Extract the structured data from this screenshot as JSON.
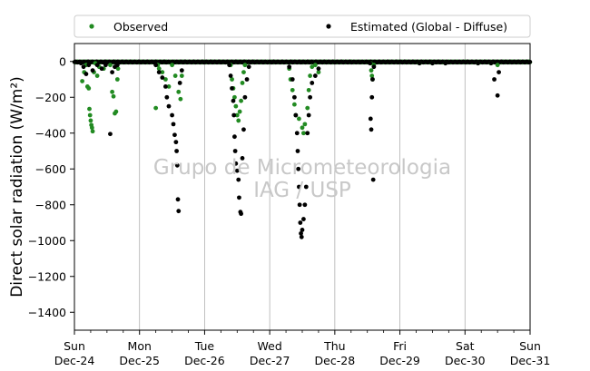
{
  "chart_data": {
    "type": "scatter",
    "ylabel": "Direct solar radiation (W/m²)",
    "ylim": [
      -1500,
      100
    ],
    "yticks": [
      0,
      -200,
      -400,
      -600,
      -800,
      -1000,
      -1200,
      -1400
    ],
    "ytick_labels": [
      "0",
      "−200",
      "−400",
      "−600",
      "−800",
      "−1000",
      "−1200",
      "−1400"
    ],
    "xlim": [
      0,
      7
    ],
    "xtick_days": [
      0,
      1,
      2,
      3,
      4,
      5,
      6,
      7
    ],
    "xtick_labels": [
      {
        "day": "Sun",
        "date": "Dec-24"
      },
      {
        "day": "Mon",
        "date": "Dec-25"
      },
      {
        "day": "Tue",
        "date": "Dec-26"
      },
      {
        "day": "Wed",
        "date": "Dec-27"
      },
      {
        "day": "Thu",
        "date": "Dec-28"
      },
      {
        "day": "Fri",
        "date": "Dec-29"
      },
      {
        "day": "Sat",
        "date": "Dec-30"
      },
      {
        "day": "Sun",
        "date": "Dec-31"
      }
    ],
    "grid": "vertical",
    "legend_placement": "above plot, two columns",
    "watermark": [
      "Grupo de Micrometeorologia",
      "IAG / USP"
    ],
    "series": [
      {
        "name": "Observed",
        "color": "#228b22",
        "points": [
          [
            0.12,
            -110
          ],
          [
            0.15,
            -60
          ],
          [
            0.18,
            -20
          ],
          [
            0.2,
            -140
          ],
          [
            0.22,
            -150
          ],
          [
            0.23,
            -265
          ],
          [
            0.24,
            -300
          ],
          [
            0.25,
            -330
          ],
          [
            0.26,
            -355
          ],
          [
            0.27,
            -370
          ],
          [
            0.28,
            -390
          ],
          [
            0.3,
            -60
          ],
          [
            0.32,
            -10
          ],
          [
            0.35,
            -80
          ],
          [
            0.38,
            -30
          ],
          [
            0.45,
            -40
          ],
          [
            0.55,
            -20
          ],
          [
            0.58,
            -170
          ],
          [
            0.6,
            -195
          ],
          [
            0.62,
            -290
          ],
          [
            0.64,
            -280
          ],
          [
            0.66,
            -100
          ],
          [
            0.67,
            -40
          ],
          [
            1.25,
            -260
          ],
          [
            1.28,
            -20
          ],
          [
            1.3,
            -40
          ],
          [
            1.35,
            -60
          ],
          [
            1.4,
            -100
          ],
          [
            1.45,
            -140
          ],
          [
            1.5,
            -20
          ],
          [
            1.55,
            -80
          ],
          [
            1.6,
            -170
          ],
          [
            1.63,
            -210
          ],
          [
            1.65,
            -80
          ],
          [
            2.4,
            -20
          ],
          [
            2.42,
            -100
          ],
          [
            2.44,
            -150
          ],
          [
            2.46,
            -200
          ],
          [
            2.48,
            -250
          ],
          [
            2.5,
            -300
          ],
          [
            2.52,
            -330
          ],
          [
            2.54,
            -280
          ],
          [
            2.56,
            -220
          ],
          [
            2.58,
            -120
          ],
          [
            2.6,
            -60
          ],
          [
            2.62,
            -20
          ],
          [
            3.3,
            -40
          ],
          [
            3.32,
            -100
          ],
          [
            3.35,
            -160
          ],
          [
            3.38,
            -240
          ],
          [
            3.4,
            -300
          ],
          [
            3.45,
            -320
          ],
          [
            3.5,
            -370
          ],
          [
            3.52,
            -400
          ],
          [
            3.54,
            -350
          ],
          [
            3.58,
            -260
          ],
          [
            3.6,
            -160
          ],
          [
            3.62,
            -80
          ],
          [
            3.65,
            -30
          ],
          [
            3.7,
            -20
          ],
          [
            3.75,
            -60
          ],
          [
            4.55,
            -10
          ],
          [
            4.56,
            -50
          ],
          [
            4.57,
            -80
          ],
          [
            4.58,
            -100
          ],
          [
            4.6,
            -20
          ],
          [
            5.3,
            -10
          ],
          [
            5.5,
            -10
          ],
          [
            5.7,
            -10
          ],
          [
            6.2,
            -10
          ],
          [
            6.4,
            -10
          ],
          [
            6.5,
            -20
          ]
        ]
      },
      {
        "name": "Estimated (Global - Diffuse)",
        "color": "#000000",
        "points": [
          [
            0.1,
            -10
          ],
          [
            0.14,
            -30
          ],
          [
            0.18,
            -70
          ],
          [
            0.22,
            -20
          ],
          [
            0.28,
            -50
          ],
          [
            0.35,
            -20
          ],
          [
            0.42,
            -40
          ],
          [
            0.48,
            -20
          ],
          [
            0.55,
            -405
          ],
          [
            0.58,
            -60
          ],
          [
            0.62,
            -30
          ],
          [
            0.66,
            -20
          ],
          [
            1.25,
            -20
          ],
          [
            1.3,
            -60
          ],
          [
            1.35,
            -90
          ],
          [
            1.4,
            -140
          ],
          [
            1.42,
            -200
          ],
          [
            1.45,
            -250
          ],
          [
            1.5,
            -300
          ],
          [
            1.52,
            -350
          ],
          [
            1.54,
            -410
          ],
          [
            1.56,
            -450
          ],
          [
            1.57,
            -500
          ],
          [
            1.58,
            -580
          ],
          [
            1.59,
            -770
          ],
          [
            1.6,
            -835
          ],
          [
            1.62,
            -120
          ],
          [
            1.65,
            -50
          ],
          [
            2.38,
            -20
          ],
          [
            2.4,
            -80
          ],
          [
            2.42,
            -150
          ],
          [
            2.44,
            -220
          ],
          [
            2.45,
            -300
          ],
          [
            2.46,
            -420
          ],
          [
            2.47,
            -500
          ],
          [
            2.48,
            -570
          ],
          [
            2.5,
            -610
          ],
          [
            2.52,
            -660
          ],
          [
            2.53,
            -760
          ],
          [
            2.55,
            -840
          ],
          [
            2.56,
            -850
          ],
          [
            2.58,
            -540
          ],
          [
            2.6,
            -380
          ],
          [
            2.62,
            -200
          ],
          [
            2.65,
            -100
          ],
          [
            2.68,
            -30
          ],
          [
            3.3,
            -30
          ],
          [
            3.35,
            -100
          ],
          [
            3.38,
            -200
          ],
          [
            3.4,
            -300
          ],
          [
            3.42,
            -400
          ],
          [
            3.43,
            -500
          ],
          [
            3.44,
            -600
          ],
          [
            3.45,
            -700
          ],
          [
            3.46,
            -800
          ],
          [
            3.47,
            -900
          ],
          [
            3.48,
            -960
          ],
          [
            3.49,
            -980
          ],
          [
            3.5,
            -940
          ],
          [
            3.52,
            -880
          ],
          [
            3.54,
            -800
          ],
          [
            3.56,
            -700
          ],
          [
            3.58,
            -400
          ],
          [
            3.6,
            -300
          ],
          [
            3.62,
            -200
          ],
          [
            3.65,
            -120
          ],
          [
            3.7,
            -80
          ],
          [
            3.75,
            -40
          ],
          [
            4.54,
            -10
          ],
          [
            4.55,
            -320
          ],
          [
            4.56,
            -380
          ],
          [
            4.57,
            -200
          ],
          [
            4.58,
            -100
          ],
          [
            4.59,
            -660
          ],
          [
            4.6,
            -30
          ],
          [
            5.3,
            -10
          ],
          [
            5.5,
            -10
          ],
          [
            5.7,
            -10
          ],
          [
            6.2,
            -10
          ],
          [
            6.4,
            -10
          ],
          [
            6.45,
            -100
          ],
          [
            6.5,
            -190
          ],
          [
            6.52,
            -60
          ]
        ]
      }
    ]
  }
}
